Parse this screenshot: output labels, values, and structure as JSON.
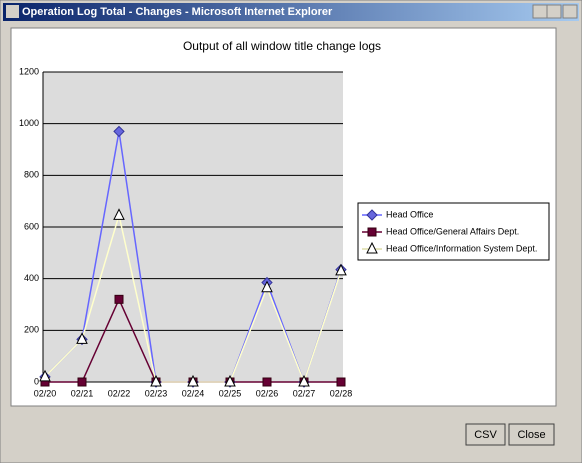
{
  "window": {
    "title": "Operation Log Total - Changes - Microsoft Internet Explorer"
  },
  "chart_data": {
    "type": "line",
    "title": "Output of all window title change logs",
    "categories": [
      "02/20",
      "02/21",
      "02/22",
      "02/23",
      "02/24",
      "02/25",
      "02/26",
      "02/27",
      "02/28"
    ],
    "series": [
      {
        "name": "Head Office",
        "color": "#6666ff",
        "marker": "diamond",
        "values": [
          20,
          165,
          970,
          0,
          0,
          0,
          385,
          0,
          435
        ]
      },
      {
        "name": "Head Office/General Affairs Dept.",
        "color": "#660033",
        "marker": "square",
        "values": [
          0,
          0,
          320,
          0,
          0,
          0,
          0,
          0,
          0
        ]
      },
      {
        "name": "Head Office/Information System Dept.",
        "color": "#ffffcc",
        "marker": "triangle",
        "values": [
          20,
          165,
          645,
          0,
          0,
          0,
          365,
          0,
          430
        ]
      }
    ],
    "ylim": [
      0,
      1200
    ],
    "yticks": [
      0,
      200,
      400,
      600,
      800,
      1000,
      1200
    ],
    "grid": true,
    "legend": "right"
  },
  "buttons": [
    "CSV",
    "Close"
  ]
}
